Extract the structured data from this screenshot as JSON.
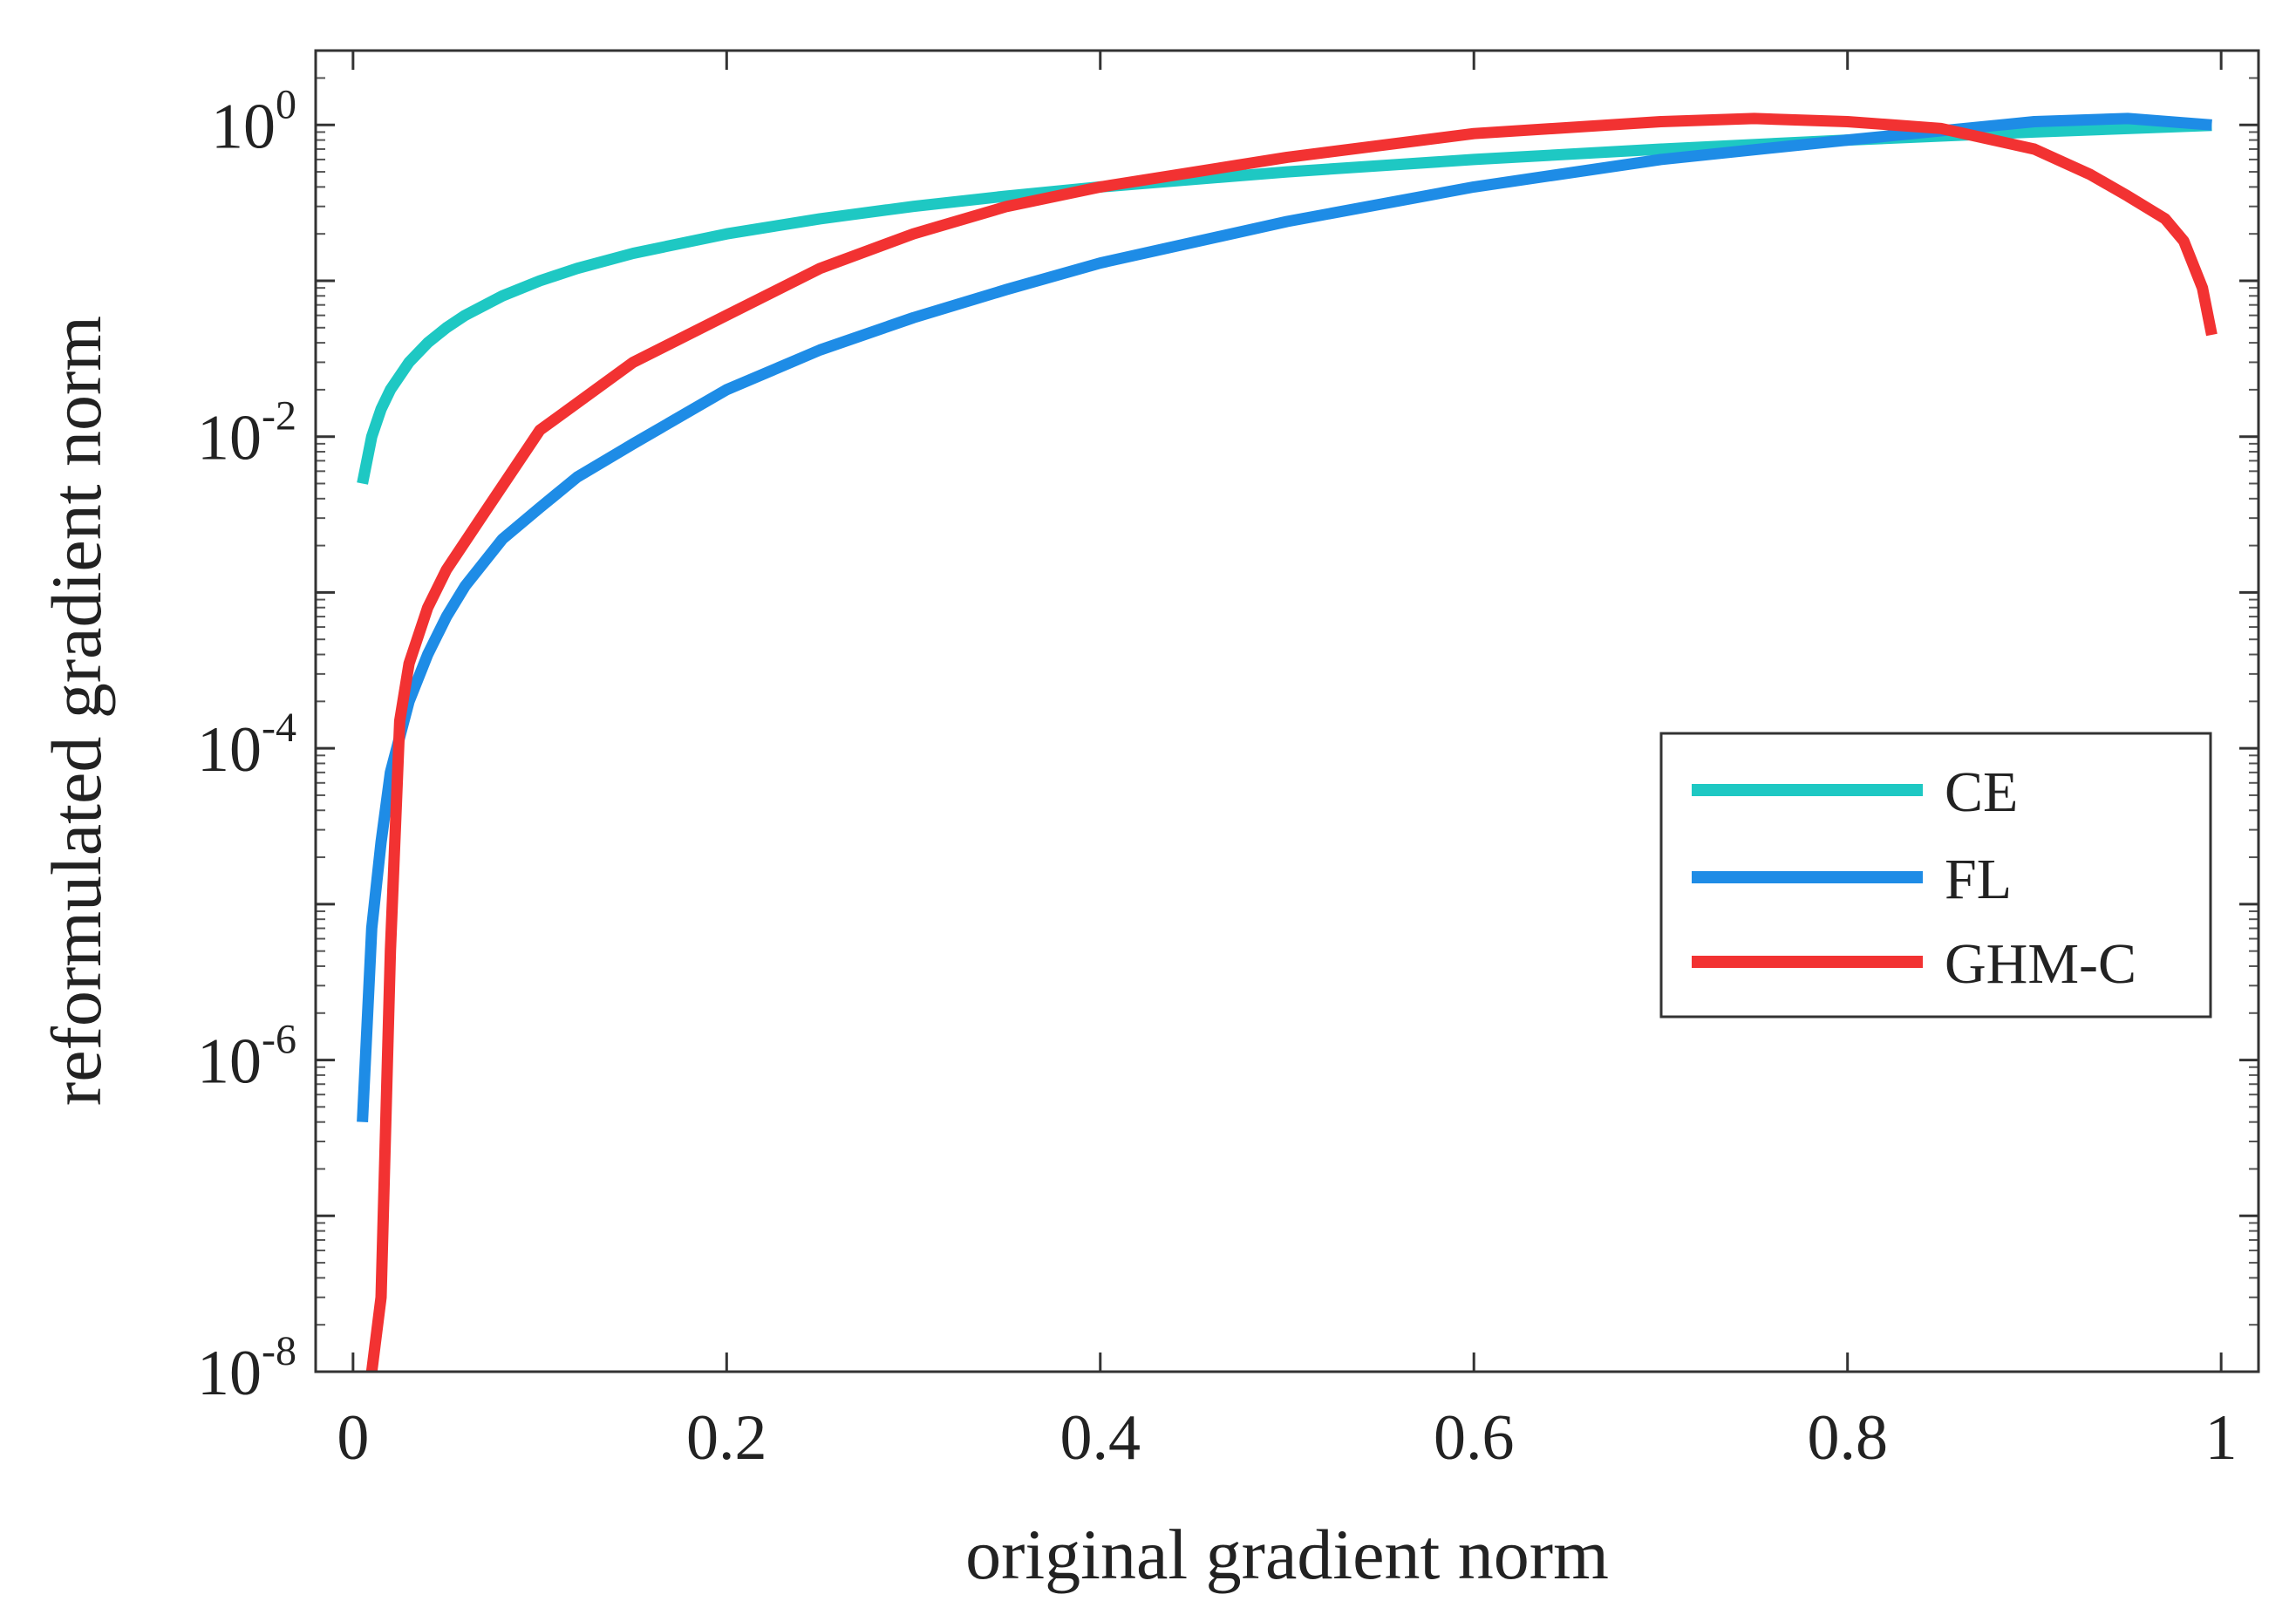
{
  "chart_data": {
    "type": "line",
    "title": "",
    "xlabel": "original gradient norm",
    "ylabel": "reformulated gradient norm",
    "xscale": "linear",
    "yscale": "log",
    "xlim": [
      -0.02,
      1.02
    ],
    "ylim": [
      1e-08,
      3
    ],
    "xticks": [
      0,
      0.2,
      0.4,
      0.6,
      0.8,
      1
    ],
    "xtick_labels": [
      "0",
      "0.2",
      "0.4",
      "0.6",
      "0.8",
      "1"
    ],
    "yticks": [
      {
        "value": 1e-08,
        "base": "10",
        "exp": "-8"
      },
      {
        "value": 1e-06,
        "base": "10",
        "exp": "-6"
      },
      {
        "value": 0.0001,
        "base": "10",
        "exp": "-4"
      },
      {
        "value": 0.01,
        "base": "10",
        "exp": "-2"
      },
      {
        "value": 1,
        "base": "10",
        "exp": "0"
      }
    ],
    "legend_position": "right, center",
    "grid": false,
    "series": [
      {
        "name": "CE",
        "color": "#1ec8c3",
        "x": [
          0.005,
          0.01,
          0.015,
          0.02,
          0.03,
          0.04,
          0.05,
          0.06,
          0.08,
          0.1,
          0.12,
          0.15,
          0.2,
          0.25,
          0.3,
          0.35,
          0.4,
          0.5,
          0.6,
          0.7,
          0.8,
          0.9,
          0.995
        ],
        "y": [
          0.005,
          0.01,
          0.015,
          0.02,
          0.03,
          0.04,
          0.05,
          0.06,
          0.08,
          0.1,
          0.12,
          0.15,
          0.2,
          0.25,
          0.3,
          0.35,
          0.4,
          0.5,
          0.6,
          0.7,
          0.8,
          0.9,
          0.995
        ]
      },
      {
        "name": "FL",
        "color": "#1e8ce6",
        "x": [
          0.005,
          0.01,
          0.015,
          0.02,
          0.03,
          0.04,
          0.05,
          0.06,
          0.08,
          0.1,
          0.12,
          0.15,
          0.2,
          0.25,
          0.3,
          0.35,
          0.4,
          0.5,
          0.6,
          0.7,
          0.8,
          0.9,
          0.95,
          0.995
        ],
        "y": [
          4e-07,
          7e-06,
          2.5e-05,
          7e-05,
          0.0002,
          0.0004,
          0.0007,
          0.0011,
          0.0022,
          0.0035,
          0.0055,
          0.009,
          0.02,
          0.036,
          0.058,
          0.088,
          0.13,
          0.24,
          0.4,
          0.6,
          0.8,
          1.05,
          1.1,
          1.0
        ]
      },
      {
        "name": "GHM-C",
        "color": "#f23232",
        "x": [
          0.01,
          0.015,
          0.02,
          0.025,
          0.03,
          0.04,
          0.05,
          0.07,
          0.1,
          0.15,
          0.2,
          0.25,
          0.3,
          0.35,
          0.4,
          0.5,
          0.6,
          0.7,
          0.75,
          0.8,
          0.85,
          0.9,
          0.93,
          0.95,
          0.97,
          0.98,
          0.99,
          0.995
        ],
        "y": [
          1e-08,
          3e-08,
          5e-06,
          0.00015,
          0.00035,
          0.0008,
          0.0014,
          0.0032,
          0.011,
          0.03,
          0.06,
          0.12,
          0.2,
          0.3,
          0.4,
          0.62,
          0.88,
          1.05,
          1.1,
          1.05,
          0.95,
          0.7,
          0.48,
          0.35,
          0.25,
          0.18,
          0.09,
          0.045
        ]
      }
    ]
  }
}
